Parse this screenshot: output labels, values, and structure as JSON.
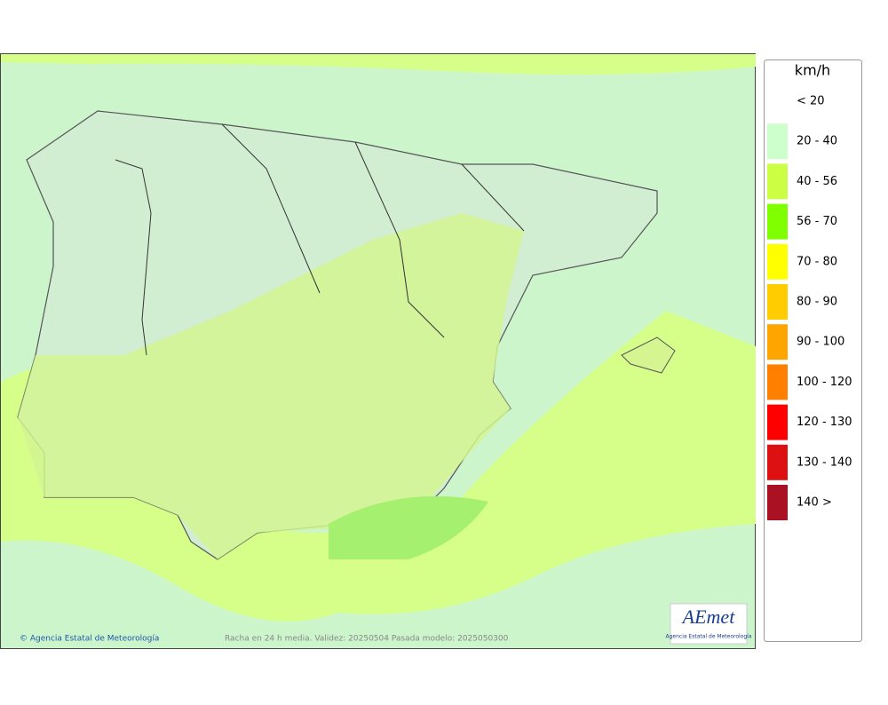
{
  "legend": {
    "title": "km/h",
    "items": [
      {
        "label": "< 20"
      },
      {
        "label": "20 - 40",
        "color": "#ccffcc"
      },
      {
        "label": "40 - 56",
        "color": "#ccff44"
      },
      {
        "label": "56 - 70",
        "color": "#80ff00"
      },
      {
        "label": "70 - 80",
        "color": "#ffff00"
      },
      {
        "label": "80 - 90",
        "color": "#ffcc00"
      },
      {
        "label": "90 - 100",
        "color": "#ffa500"
      },
      {
        "label": "100 - 120",
        "color": "#ff8000"
      },
      {
        "label": "120 - 130",
        "color": "#ff0000"
      },
      {
        "label": "130 - 140",
        "color": "#dd1111"
      },
      {
        "label": "140 >",
        "color": "#aa1122"
      }
    ]
  },
  "footer": {
    "credit": "© Agencia Estatal de Meteorología",
    "caption": "Racha en 24 h media. Validez: 20250504 Pasada modelo: 2025050300"
  },
  "logo": {
    "name": "AEmet",
    "subtitle": "Agencia Estatal de Meteorología"
  }
}
